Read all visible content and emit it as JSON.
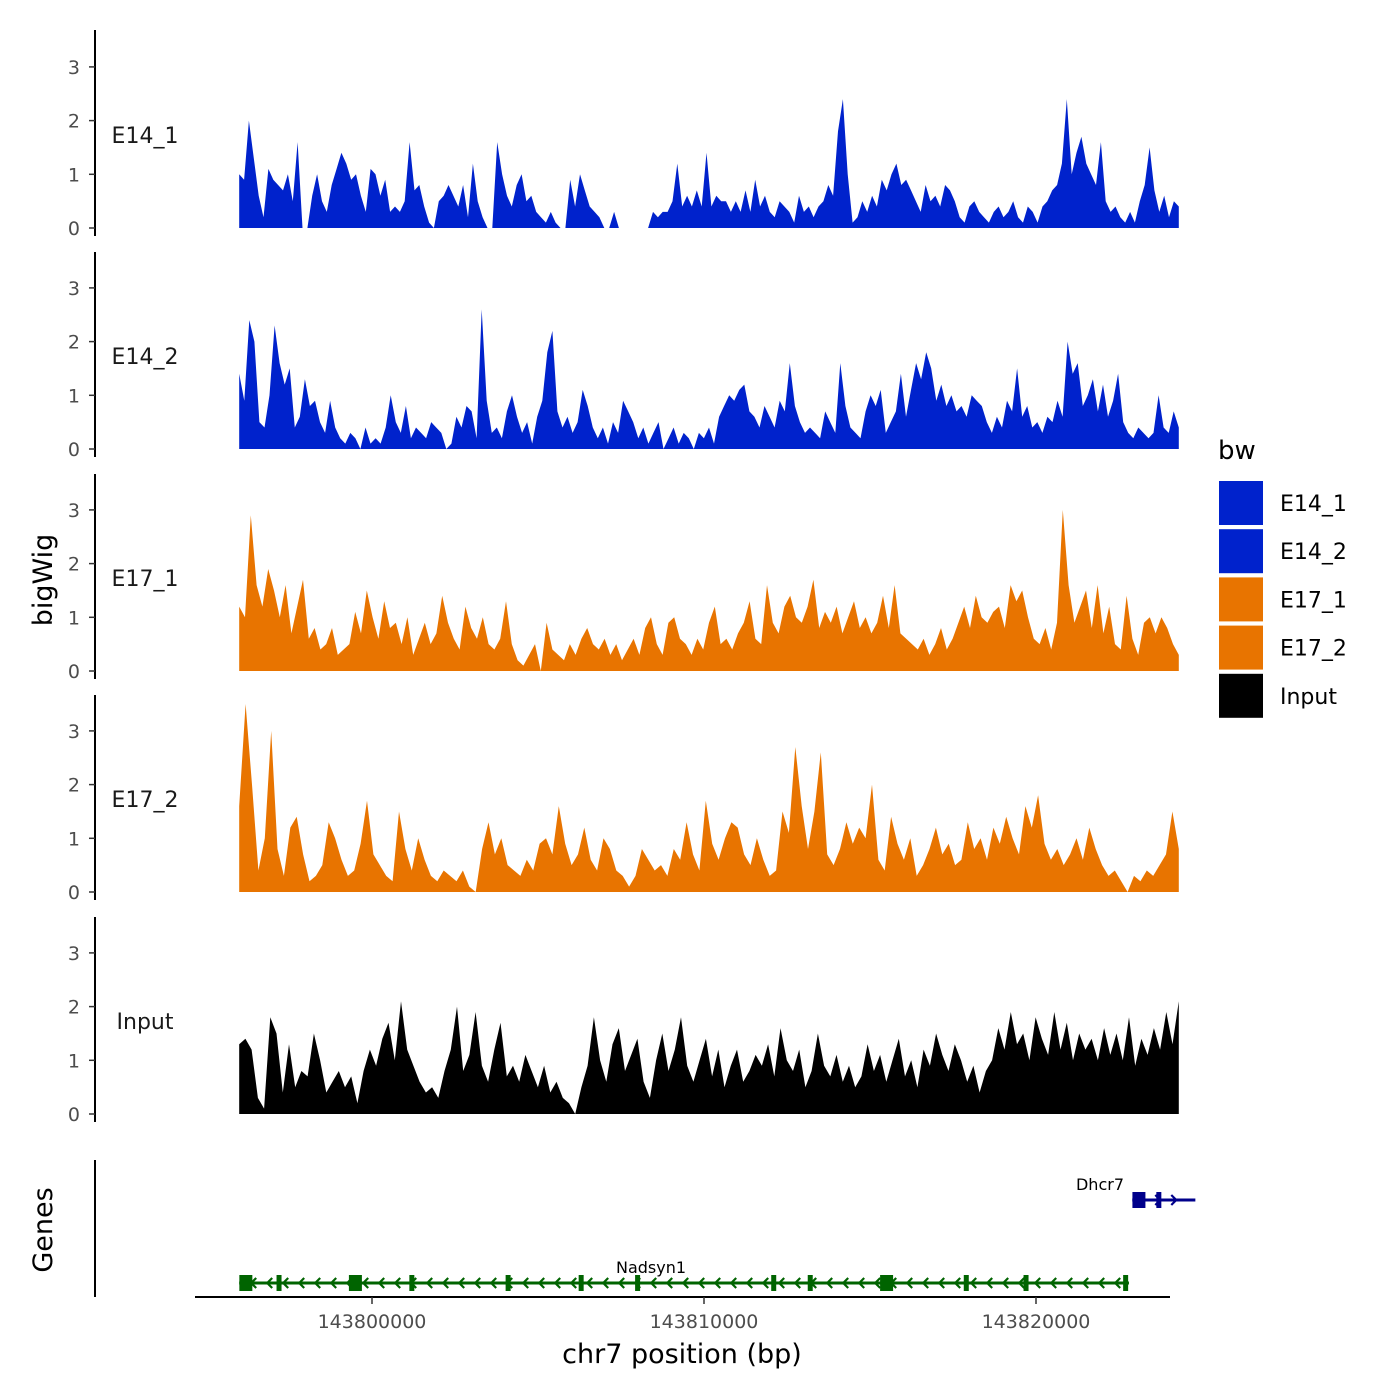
{
  "chart_data": {
    "type": "area",
    "ylabel": "bigWig",
    "xlabel": "chr7 position (bp)",
    "xlim": [
      143795000,
      143825000
    ],
    "xticks": [
      143800000,
      143810000,
      143820000
    ],
    "xtick_labels": [
      "143800000",
      "143810000",
      "143820000"
    ],
    "ylim": [
      0,
      3.6
    ],
    "yticks": [
      0,
      1,
      2,
      3
    ],
    "ytick_labels": [
      "0",
      "1",
      "2",
      "3"
    ],
    "region": [
      143796000,
      143824300
    ],
    "legend": {
      "title": "bw",
      "position": "right",
      "entries": [
        {
          "label": "E14_1",
          "color": "#0022CC"
        },
        {
          "label": "E14_2",
          "color": "#0022CC"
        },
        {
          "label": "E17_1",
          "color": "#E87400"
        },
        {
          "label": "E17_2",
          "color": "#E87400"
        },
        {
          "label": "Input",
          "color": "#000000"
        }
      ]
    },
    "series": [
      {
        "name": "E14_1",
        "color": "#0022CC",
        "values": [
          1.0,
          0.9,
          2.0,
          1.3,
          0.6,
          0.2,
          1.1,
          0.9,
          0.8,
          0.7,
          1.0,
          0.5,
          1.6,
          0,
          0,
          0.6,
          1.0,
          0.5,
          0.3,
          0.8,
          1.1,
          1.4,
          1.2,
          0.9,
          1.0,
          0.6,
          0.3,
          1.1,
          1.0,
          0.6,
          0.9,
          0.3,
          0.4,
          0.3,
          0.5,
          1.6,
          0.7,
          0.8,
          0.4,
          0.1,
          0,
          0.5,
          0.6,
          0.8,
          0.6,
          0.4,
          0.8,
          0.2,
          1.2,
          0.5,
          0.2,
          0,
          0,
          1.6,
          1.0,
          0.6,
          0.4,
          0.8,
          1.0,
          0.5,
          0.6,
          0.3,
          0.2,
          0.1,
          0.3,
          0.1,
          0,
          0,
          0.9,
          0.4,
          1.0,
          0.7,
          0.4,
          0.3,
          0.2,
          0,
          0,
          0.3,
          0,
          0,
          0,
          0,
          0,
          0,
          0,
          0.3,
          0.2,
          0.3,
          0.3,
          0.5,
          1.2,
          0.4,
          0.6,
          0.4,
          0.7,
          0.4,
          1.4,
          0.4,
          0.6,
          0.5,
          0.5,
          0.3,
          0.5,
          0.3,
          0.7,
          0.3,
          0.9,
          0.4,
          0.6,
          0.3,
          0.2,
          0.5,
          0.4,
          0.3,
          0.1,
          0.6,
          0.3,
          0.4,
          0.2,
          0.4,
          0.5,
          0.8,
          0.6,
          1.8,
          2.4,
          1.0,
          0.1,
          0.2,
          0.5,
          0.3,
          0.6,
          0.4,
          0.9,
          0.7,
          1.0,
          1.2,
          0.8,
          0.9,
          0.7,
          0.5,
          0.3,
          0.8,
          0.5,
          0.6,
          0.4,
          0.8,
          0.7,
          0.5,
          0.2,
          0.1,
          0.4,
          0.5,
          0.3,
          0.2,
          0.1,
          0.3,
          0.4,
          0.2,
          0.3,
          0.5,
          0.2,
          0.1,
          0.4,
          0.3,
          0.1,
          0.4,
          0.5,
          0.7,
          0.8,
          1.2,
          2.4,
          1.0,
          1.4,
          1.7,
          1.2,
          1.0,
          0.8,
          1.6,
          0.5,
          0.3,
          0.4,
          0.2,
          0.1,
          0.3,
          0.1,
          0.5,
          0.8,
          1.5,
          0.7,
          0.3,
          0.6,
          0.2,
          0.5,
          0.4
        ]
      },
      {
        "name": "E14_2",
        "color": "#0022CC",
        "values": [
          1.4,
          0.9,
          2.4,
          2.0,
          0.5,
          0.4,
          1.0,
          2.3,
          1.6,
          1.2,
          1.5,
          0.4,
          0.6,
          1.3,
          0.8,
          0.9,
          0.5,
          0.3,
          0.9,
          0.4,
          0.2,
          0.1,
          0.3,
          0.2,
          0,
          0.4,
          0.1,
          0.2,
          0.1,
          0.4,
          1.0,
          0.5,
          0.3,
          0.8,
          0.2,
          0.4,
          0.3,
          0.2,
          0.5,
          0.4,
          0.3,
          0,
          0.1,
          0.6,
          0.4,
          0.8,
          0.7,
          0.2,
          2.6,
          0.9,
          0.3,
          0.4,
          0.2,
          0.7,
          1.0,
          0.6,
          0.3,
          0.5,
          0.1,
          0.6,
          0.9,
          1.8,
          2.2,
          0.7,
          0.4,
          0.6,
          0.3,
          0.5,
          1.1,
          0.8,
          0.4,
          0.2,
          0.4,
          0.1,
          0.5,
          0.3,
          0.9,
          0.7,
          0.5,
          0.2,
          0.4,
          0.1,
          0.3,
          0.5,
          0,
          0.2,
          0.4,
          0.1,
          0.3,
          0.2,
          0,
          0.3,
          0.2,
          0.4,
          0.1,
          0.6,
          0.8,
          1.0,
          0.9,
          1.1,
          1.2,
          0.7,
          0.6,
          0.4,
          0.8,
          0.6,
          0.4,
          0.9,
          0.7,
          1.6,
          0.8,
          0.5,
          0.3,
          0.4,
          0.3,
          0.2,
          0.7,
          0.5,
          0.3,
          1.6,
          0.8,
          0.4,
          0.3,
          0.2,
          0.7,
          1.0,
          0.8,
          1.1,
          0.3,
          0.5,
          0.7,
          1.4,
          0.6,
          1.1,
          1.6,
          1.3,
          1.8,
          1.5,
          0.9,
          1.2,
          0.8,
          1.0,
          0.7,
          0.8,
          0.6,
          1.0,
          0.9,
          0.8,
          0.5,
          0.3,
          0.6,
          0.4,
          0.9,
          0.7,
          1.5,
          0.6,
          0.8,
          0.4,
          0.5,
          0.3,
          0.6,
          0.5,
          0.9,
          0.6,
          2.0,
          1.4,
          1.6,
          0.8,
          1.0,
          1.3,
          0.7,
          1.2,
          0.6,
          0.9,
          1.4,
          0.5,
          0.3,
          0.2,
          0.4,
          0.3,
          0.2,
          0.3,
          1.0,
          0.4,
          0.3,
          0.7,
          0.4
        ]
      },
      {
        "name": "E17_1",
        "color": "#E87400",
        "values": [
          1.2,
          1.0,
          2.9,
          1.6,
          1.2,
          1.9,
          1.5,
          1.0,
          1.6,
          0.7,
          1.2,
          1.7,
          0.6,
          0.8,
          0.4,
          0.5,
          0.8,
          0.3,
          0.4,
          0.5,
          1.1,
          0.7,
          1.5,
          1.0,
          0.6,
          1.3,
          0.8,
          0.9,
          0.5,
          1.0,
          0.3,
          0.6,
          0.9,
          0.5,
          0.7,
          1.4,
          0.9,
          0.6,
          0.4,
          1.2,
          0.8,
          0.6,
          1.0,
          0.5,
          0.4,
          0.6,
          1.3,
          0.5,
          0.2,
          0.1,
          0.3,
          0.5,
          0,
          0.9,
          0.4,
          0.3,
          0.2,
          0.5,
          0.3,
          0.6,
          0.8,
          0.5,
          0.4,
          0.6,
          0.3,
          0.5,
          0.2,
          0.4,
          0.6,
          0.3,
          0.8,
          1.0,
          0.5,
          0.3,
          0.9,
          1.0,
          0.6,
          0.5,
          0.3,
          0.6,
          0.4,
          0.9,
          1.2,
          0.5,
          0.6,
          0.4,
          0.7,
          0.9,
          1.3,
          0.6,
          0.5,
          1.6,
          0.9,
          0.7,
          1.2,
          1.4,
          1.0,
          0.9,
          1.2,
          1.7,
          0.8,
          1.1,
          0.9,
          1.2,
          0.7,
          1.0,
          1.3,
          0.8,
          1.0,
          0.7,
          0.9,
          1.4,
          0.8,
          1.6,
          0.7,
          0.6,
          0.5,
          0.4,
          0.6,
          0.3,
          0.5,
          0.8,
          0.4,
          0.6,
          0.9,
          1.2,
          0.8,
          1.4,
          1.0,
          0.9,
          1.1,
          1.2,
          0.8,
          1.6,
          1.3,
          1.5,
          1.0,
          0.6,
          0.5,
          0.8,
          0.4,
          0.9,
          3.0,
          1.6,
          0.9,
          1.2,
          1.5,
          0.8,
          1.6,
          0.7,
          1.2,
          0.5,
          0.4,
          1.4,
          0.6,
          0.3,
          0.9,
          1.0,
          0.7,
          1.0,
          0.8,
          0.5,
          0.3
        ]
      },
      {
        "name": "E17_2",
        "color": "#E87400",
        "values": [
          1.6,
          3.5,
          2.0,
          0.4,
          1.0,
          3.0,
          0.8,
          0.3,
          1.2,
          1.4,
          0.7,
          0.2,
          0.3,
          0.5,
          1.3,
          1.0,
          0.6,
          0.3,
          0.4,
          0.9,
          1.7,
          0.7,
          0.5,
          0.3,
          0.2,
          1.5,
          0.8,
          0.4,
          1.0,
          0.6,
          0.3,
          0.2,
          0.4,
          0.3,
          0.2,
          0.4,
          0.1,
          0,
          0.8,
          1.3,
          0.7,
          1.0,
          0.5,
          0.4,
          0.3,
          0.6,
          0.4,
          0.9,
          1.0,
          0.7,
          1.6,
          0.9,
          0.5,
          0.7,
          1.2,
          0.6,
          0.4,
          1.0,
          0.8,
          0.4,
          0.3,
          0.1,
          0.3,
          0.8,
          0.6,
          0.4,
          0.5,
          0.3,
          0.8,
          0.6,
          1.3,
          0.7,
          0.4,
          1.7,
          0.9,
          0.6,
          1.0,
          1.3,
          1.2,
          0.7,
          0.5,
          1.0,
          0.6,
          0.3,
          0.4,
          1.5,
          1.1,
          2.7,
          1.6,
          0.8,
          1.5,
          2.6,
          0.7,
          0.5,
          0.8,
          1.3,
          0.9,
          1.2,
          1.0,
          2.0,
          0.6,
          0.4,
          1.4,
          0.9,
          0.6,
          1.0,
          0.3,
          0.5,
          0.8,
          1.2,
          0.7,
          0.9,
          0.5,
          0.6,
          1.3,
          0.8,
          1.0,
          0.6,
          1.2,
          0.9,
          1.4,
          1.0,
          0.7,
          1.6,
          1.2,
          1.8,
          0.9,
          0.6,
          0.8,
          0.5,
          0.7,
          1.0,
          0.6,
          1.2,
          0.8,
          0.5,
          0.3,
          0.4,
          0.2,
          0,
          0.3,
          0.2,
          0.4,
          0.3,
          0.5,
          0.7,
          1.5,
          0.8
        ]
      },
      {
        "name": "Input",
        "color": "#000000",
        "values": [
          1.3,
          1.4,
          1.2,
          0.3,
          0.1,
          1.8,
          1.5,
          0.4,
          1.3,
          0.5,
          0.8,
          0.7,
          1.5,
          1.0,
          0.4,
          0.6,
          0.8,
          0.5,
          0.7,
          0.2,
          0.8,
          1.2,
          0.9,
          1.4,
          1.7,
          1.0,
          2.1,
          1.2,
          0.9,
          0.6,
          0.4,
          0.5,
          0.3,
          0.8,
          1.2,
          2.0,
          0.8,
          1.1,
          1.9,
          0.9,
          0.6,
          1.2,
          1.7,
          0.7,
          0.9,
          0.6,
          1.1,
          0.8,
          0.5,
          0.9,
          0.4,
          0.6,
          0.3,
          0.2,
          0,
          0.5,
          0.9,
          1.8,
          1.0,
          0.6,
          1.3,
          1.6,
          0.8,
          1.1,
          1.4,
          0.6,
          0.3,
          1.0,
          1.5,
          0.8,
          1.2,
          1.8,
          0.9,
          0.6,
          1.0,
          1.4,
          0.7,
          1.2,
          0.5,
          0.9,
          1.2,
          0.6,
          0.8,
          1.1,
          0.9,
          1.3,
          0.7,
          1.6,
          1.0,
          0.8,
          1.2,
          0.5,
          0.8,
          1.5,
          0.9,
          0.7,
          1.1,
          0.6,
          0.9,
          0.5,
          0.7,
          1.3,
          0.8,
          1.1,
          0.6,
          1.0,
          1.4,
          0.7,
          1.0,
          0.5,
          1.2,
          0.9,
          1.5,
          1.1,
          0.8,
          1.3,
          1.0,
          0.6,
          0.9,
          0.4,
          0.8,
          1.0,
          1.6,
          1.2,
          1.9,
          1.3,
          1.5,
          1.0,
          1.8,
          1.4,
          1.1,
          1.9,
          1.2,
          1.7,
          1.0,
          1.5,
          1.2,
          1.4,
          1.0,
          1.6,
          1.1,
          1.5,
          1.0,
          1.8,
          0.9,
          1.4,
          1.1,
          1.6,
          1.2,
          1.9,
          1.3,
          2.1
        ]
      }
    ],
    "genes": {
      "title": "Genes",
      "items": [
        {
          "name": "Nadsyn1",
          "start": 143796000,
          "end": 143822800,
          "strand": "-",
          "color": "#006400",
          "exons": [
            143796200,
            143797200,
            143799500,
            143801200,
            143804100,
            143806300,
            143808000,
            143812100,
            143813200,
            143815500,
            143817900,
            143819700,
            143822700
          ]
        },
        {
          "name": "Dhcr7",
          "start": 143822900,
          "end": 143824800,
          "strand": "+",
          "color": "#00008B",
          "exons": [
            143823100,
            143823700
          ]
        }
      ]
    }
  }
}
